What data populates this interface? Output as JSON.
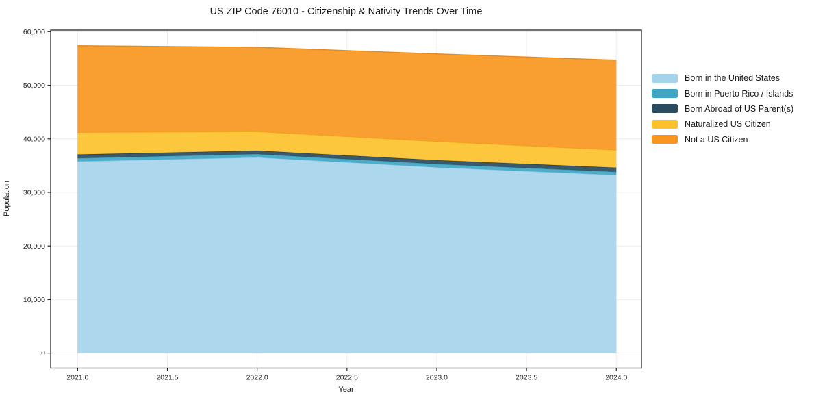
{
  "figure": {
    "title": "US ZIP Code 76010 - Citizenship & Nativity Trends Over Time",
    "background": "#ffffff",
    "spine_color": "#262626",
    "grid_color": "#dcdcdc",
    "text_color": "#262626"
  },
  "chart_data": {
    "type": "area",
    "stacked": true,
    "title": "US ZIP Code 76010 - Citizenship & Nativity Trends Over Time",
    "xlabel": "Year",
    "ylabel": "Population",
    "x": [
      2021,
      2022,
      2023,
      2024
    ],
    "series": [
      {
        "name": "Born in the United States",
        "color": "#a5d4ea",
        "edge": "#82bcd9",
        "values": [
          35800,
          36550,
          34700,
          33260
        ]
      },
      {
        "name": "Born in Puerto Rico / Islands",
        "color": "#3fa7c4",
        "edge": "#2f8fab",
        "values": [
          600,
          620,
          600,
          600
        ]
      },
      {
        "name": "Born Abroad of US Parent(s)",
        "color": "#2b4b5e",
        "edge": "#203a49",
        "values": [
          680,
          630,
          720,
          760
        ]
      },
      {
        "name": "Naturalized US Citizen",
        "color": "#fcc22d",
        "edge": "#e9ad12",
        "values": [
          4120,
          3550,
          3480,
          3280
        ]
      },
      {
        "name": "Not a US Citizen",
        "color": "#f8961f",
        "edge": "#e2820c",
        "values": [
          16200,
          15750,
          16360,
          16810
        ]
      }
    ],
    "totals_by_year": [
      57400,
      57100,
      55860,
      54710
    ],
    "xticks": [
      2021.0,
      2021.5,
      2022.0,
      2022.5,
      2023.0,
      2023.5,
      2024.0
    ],
    "yticks": [
      0,
      10000,
      20000,
      30000,
      40000,
      50000,
      60000
    ],
    "xlim": [
      2020.85,
      2024.14
    ],
    "ylim": [
      -2800,
      60300
    ],
    "grid": true,
    "legend_position": "right",
    "fill_opacity": 0.92
  }
}
